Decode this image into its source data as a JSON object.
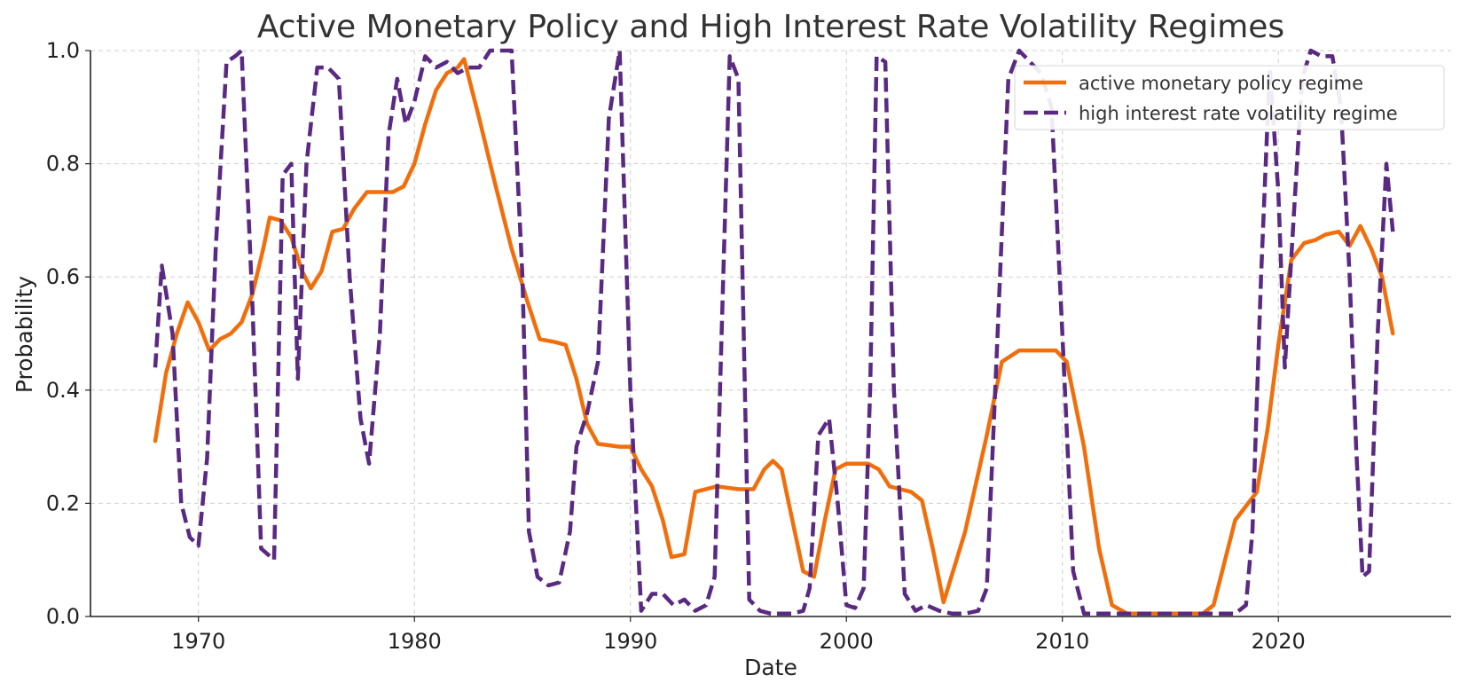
{
  "chart_data": {
    "type": "line",
    "title": "Active Monetary Policy and High Interest Rate Volatility Regimes",
    "xlabel": "Date",
    "ylabel": "Probability",
    "xlim": [
      1965,
      2028
    ],
    "ylim": [
      0.0,
      1.0
    ],
    "xticks": [
      1970,
      1980,
      1990,
      2000,
      2010,
      2020
    ],
    "yticks": [
      0.0,
      0.2,
      0.4,
      0.6,
      0.8,
      1.0
    ],
    "xtick_labels": [
      "1970",
      "1980",
      "1990",
      "2000",
      "2010",
      "2020"
    ],
    "ytick_labels": [
      "0.0",
      "0.2",
      "0.4",
      "0.6",
      "0.8",
      "1.0"
    ],
    "grid": true,
    "legend_position": "top-right",
    "series": [
      {
        "name": "active monetary policy regime",
        "color": "#f06f0c",
        "style": "solid",
        "x": [
          1968,
          1968.5,
          1969,
          1969.5,
          1970,
          1970.5,
          1971,
          1971.5,
          1972,
          1972.5,
          1973,
          1973.3,
          1973.8,
          1974.3,
          1974.8,
          1975.2,
          1975.7,
          1976.2,
          1976.7,
          1977.2,
          1977.8,
          1978.5,
          1979,
          1979.5,
          1980,
          1980.5,
          1981,
          1981.5,
          1982,
          1982.3,
          1983,
          1983.7,
          1984.5,
          1985.2,
          1985.8,
          1986.5,
          1987,
          1987.5,
          1988,
          1988.5,
          1989.5,
          1990,
          1990.5,
          1991,
          1991.5,
          1991.9,
          1992.5,
          1993,
          1994,
          1995,
          1995.7,
          1996.2,
          1996.6,
          1997,
          1997.5,
          1998,
          1998.5,
          1999,
          1999.5,
          2000,
          2000.5,
          2001,
          2001.5,
          2002,
          2002.5,
          2003,
          2003.5,
          2004,
          2004.5,
          2005.5,
          2006.5,
          2007.2,
          2008,
          2008.5,
          2009,
          2009.7,
          2010.2,
          2011,
          2011.7,
          2012.3,
          2013,
          2014,
          2015,
          2015.7,
          2016.5,
          2017,
          2018,
          2019,
          2019.5,
          2020,
          2020.6,
          2021.2,
          2021.7,
          2022.2,
          2022.8,
          2023.3,
          2023.8,
          2024.3,
          2024.8,
          2025.3
        ],
        "y": [
          0.31,
          0.43,
          0.5,
          0.555,
          0.52,
          0.47,
          0.49,
          0.5,
          0.52,
          0.57,
          0.65,
          0.705,
          0.7,
          0.67,
          0.61,
          0.58,
          0.61,
          0.68,
          0.685,
          0.72,
          0.75,
          0.75,
          0.75,
          0.76,
          0.8,
          0.87,
          0.93,
          0.96,
          0.97,
          0.985,
          0.88,
          0.77,
          0.65,
          0.56,
          0.49,
          0.485,
          0.48,
          0.42,
          0.34,
          0.305,
          0.3,
          0.3,
          0.26,
          0.23,
          0.17,
          0.105,
          0.11,
          0.22,
          0.23,
          0.225,
          0.225,
          0.26,
          0.275,
          0.26,
          0.17,
          0.08,
          0.07,
          0.17,
          0.26,
          0.27,
          0.27,
          0.27,
          0.26,
          0.23,
          0.225,
          0.22,
          0.205,
          0.12,
          0.025,
          0.15,
          0.32,
          0.45,
          0.47,
          0.47,
          0.47,
          0.47,
          0.45,
          0.3,
          0.12,
          0.02,
          0.005,
          0.005,
          0.005,
          0.005,
          0.005,
          0.02,
          0.17,
          0.22,
          0.33,
          0.48,
          0.63,
          0.66,
          0.665,
          0.675,
          0.68,
          0.655,
          0.69,
          0.65,
          0.6,
          0.5
        ]
      },
      {
        "name": "high interest rate volatility regime",
        "color": "#5a2a82",
        "style": "dashed",
        "x": [
          1968,
          1968.3,
          1968.8,
          1969.2,
          1969.6,
          1970,
          1970.4,
          1970.8,
          1971.3,
          1971.7,
          1972,
          1972.5,
          1972.9,
          1973.5,
          1973.9,
          1974.3,
          1974.6,
          1975,
          1975.5,
          1976,
          1976.5,
          1977,
          1977.5,
          1977.9,
          1978.4,
          1978.8,
          1979.2,
          1979.6,
          1980,
          1980.5,
          1981,
          1981.5,
          1982,
          1982.5,
          1983,
          1983.5,
          1984,
          1984.5,
          1985,
          1985.3,
          1985.7,
          1986.2,
          1986.7,
          1987.2,
          1987.5,
          1988,
          1988.5,
          1989,
          1989.5,
          1990,
          1990.5,
          1991,
          1991.5,
          1992,
          1992.5,
          1993,
          1993.5,
          1993.9,
          1994.3,
          1994.6,
          1995,
          1995.5,
          1996,
          1996.5,
          1997,
          1997.5,
          1998,
          1998.3,
          1998.7,
          1999.2,
          1999.6,
          2000,
          2000.4,
          2000.8,
          2001.1,
          2001.4,
          2001.8,
          2002.2,
          2002.7,
          2003.2,
          2003.7,
          2004.3,
          2004.9,
          2005.5,
          2006.1,
          2006.5,
          2007,
          2007.5,
          2008,
          2008.5,
          2009,
          2009.5,
          2010,
          2010.5,
          2011,
          2012,
          2013,
          2014,
          2015,
          2016,
          2017,
          2018,
          2018.5,
          2018.8,
          2019.2,
          2019.6,
          2020,
          2020.3,
          2020.7,
          2021.1,
          2021.5,
          2022,
          2022.5,
          2022.9,
          2023.3,
          2023.6,
          2023.9,
          2024.2,
          2024.6,
          2025,
          2025.3
        ],
        "y": [
          0.44,
          0.62,
          0.5,
          0.2,
          0.14,
          0.125,
          0.28,
          0.65,
          0.98,
          0.99,
          1.0,
          0.55,
          0.12,
          0.1,
          0.78,
          0.8,
          0.42,
          0.8,
          0.97,
          0.97,
          0.95,
          0.6,
          0.35,
          0.27,
          0.5,
          0.85,
          0.95,
          0.87,
          0.91,
          0.99,
          0.97,
          0.98,
          0.96,
          0.97,
          0.97,
          1.0,
          1.0,
          1.0,
          0.6,
          0.15,
          0.07,
          0.055,
          0.06,
          0.15,
          0.3,
          0.36,
          0.45,
          0.88,
          1.0,
          0.4,
          0.01,
          0.04,
          0.04,
          0.02,
          0.03,
          0.01,
          0.02,
          0.07,
          0.6,
          0.99,
          0.95,
          0.03,
          0.01,
          0.005,
          0.005,
          0.005,
          0.01,
          0.05,
          0.32,
          0.35,
          0.2,
          0.02,
          0.015,
          0.05,
          0.4,
          0.99,
          0.98,
          0.4,
          0.04,
          0.01,
          0.02,
          0.01,
          0.005,
          0.005,
          0.01,
          0.05,
          0.5,
          0.95,
          1.0,
          0.98,
          0.96,
          0.9,
          0.5,
          0.08,
          0.005,
          0.005,
          0.005,
          0.005,
          0.005,
          0.005,
          0.005,
          0.005,
          0.02,
          0.15,
          0.6,
          0.97,
          0.75,
          0.44,
          0.7,
          0.95,
          1.0,
          0.99,
          0.99,
          0.9,
          0.6,
          0.3,
          0.07,
          0.08,
          0.5,
          0.8,
          0.68
        ]
      }
    ]
  }
}
